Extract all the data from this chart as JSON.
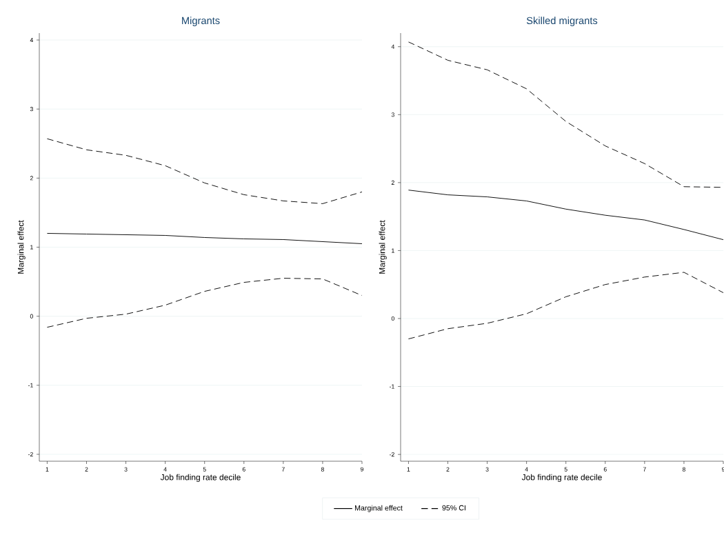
{
  "chart_data": [
    {
      "type": "line",
      "title": "Migrants",
      "xlabel": "Job finding rate decile",
      "ylabel": "Marginal effect",
      "x": [
        1,
        2,
        3,
        4,
        5,
        6,
        7,
        8,
        9
      ],
      "xlim": [
        0.8,
        9
      ],
      "ylim": [
        -2.1,
        4.1
      ],
      "xticks": [
        1,
        2,
        3,
        4,
        5,
        6,
        7,
        8,
        9
      ],
      "yticks": [
        -2,
        -1,
        0,
        1,
        2,
        3,
        4
      ],
      "grid": "y",
      "legend": "bottom",
      "series": [
        {
          "name": "Marginal effect",
          "color": "#000000",
          "line_style": "solid",
          "values": [
            1.2,
            1.19,
            1.18,
            1.17,
            1.14,
            1.12,
            1.11,
            1.08,
            1.05
          ]
        },
        {
          "name": "95% CI",
          "color": "#000000",
          "line_style": "dashed",
          "values": [
            2.57,
            2.41,
            2.33,
            2.18,
            1.93,
            1.76,
            1.67,
            1.63,
            1.8
          ]
        },
        {
          "color": "#000000",
          "line_style": "dashed",
          "values": [
            -0.16,
            -0.03,
            0.03,
            0.16,
            0.36,
            0.49,
            0.55,
            0.54,
            0.3
          ]
        }
      ]
    },
    {
      "type": "line",
      "title": "Skilled migrants",
      "xlabel": "Job finding rate decile",
      "ylabel": "Marginal effect",
      "x": [
        1,
        2,
        3,
        4,
        5,
        6,
        7,
        8,
        9
      ],
      "xlim": [
        0.8,
        9
      ],
      "ylim": [
        -2.1,
        4.2
      ],
      "xticks": [
        1,
        2,
        3,
        4,
        5,
        6,
        7,
        8,
        9
      ],
      "yticks": [
        -2,
        -1,
        0,
        1,
        2,
        3,
        4
      ],
      "grid": "y",
      "series": [
        {
          "color": "#000000",
          "line_style": "solid",
          "values": [
            1.89,
            1.82,
            1.79,
            1.73,
            1.61,
            1.52,
            1.45,
            1.31,
            1.16
          ]
        },
        {
          "color": "#000000",
          "line_style": "dashed",
          "values": [
            4.07,
            3.8,
            3.66,
            3.38,
            2.9,
            2.54,
            2.28,
            1.94,
            1.93
          ]
        },
        {
          "color": "#000000",
          "line_style": "dashed",
          "values": [
            -0.3,
            -0.15,
            -0.07,
            0.07,
            0.32,
            0.5,
            0.61,
            0.68,
            0.38
          ]
        }
      ]
    }
  ]
}
